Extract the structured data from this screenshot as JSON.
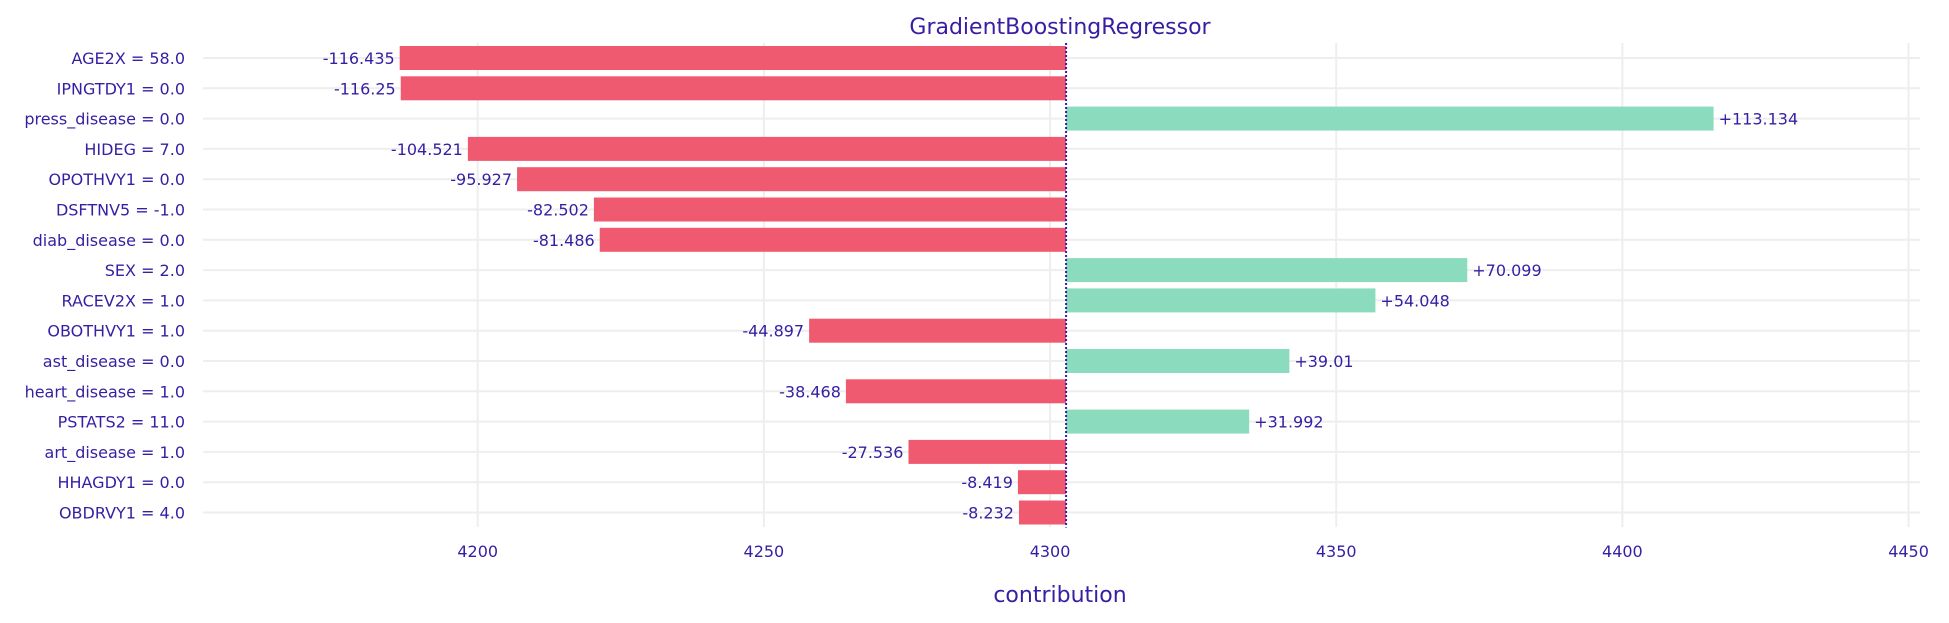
{
  "chart_data": {
    "type": "bar",
    "title": "GradientBoostingRegressor",
    "xlabel": "contribution",
    "ylabel": "",
    "baseline": 4302.8,
    "xlim": [
      4152,
      4452
    ],
    "xticks": [
      4200,
      4250,
      4300,
      4350,
      4400,
      4450
    ],
    "grid": true,
    "orientation": "horizontal",
    "colors": {
      "positive": "#8bdcbe",
      "negative": "#f05a71",
      "text": "#371ea3",
      "grid": "#eeeeee",
      "baseline": "#371ea3"
    },
    "categories": [
      "AGE2X = 58.0",
      "IPNGTDY1 = 0.0",
      "press_disease = 0.0",
      "HIDEG = 7.0",
      "OPOTHVY1 = 0.0",
      "DSFTNV5 = -1.0",
      "diab_disease = 0.0",
      "SEX = 2.0",
      "RACEV2X = 1.0",
      "OBOTHVY1 = 1.0",
      "ast_disease = 0.0",
      "heart_disease = 1.0",
      "PSTATS2 = 11.0",
      "art_disease = 1.0",
      "HHAGDY1 = 0.0",
      "OBDRVY1 = 4.0"
    ],
    "values": [
      -116.435,
      -116.25,
      113.134,
      -104.521,
      -95.927,
      -82.502,
      -81.486,
      70.099,
      54.048,
      -44.897,
      39.01,
      -38.468,
      31.992,
      -27.536,
      -8.419,
      -8.232
    ],
    "labels": [
      "-116.435",
      "-116.25",
      "+113.134",
      "-104.521",
      "-95.927",
      "-82.502",
      "-81.486",
      "+70.099",
      "+54.048",
      "-44.897",
      "+39.01",
      "-38.468",
      "+31.992",
      "-27.536",
      "-8.419",
      "-8.232"
    ]
  }
}
